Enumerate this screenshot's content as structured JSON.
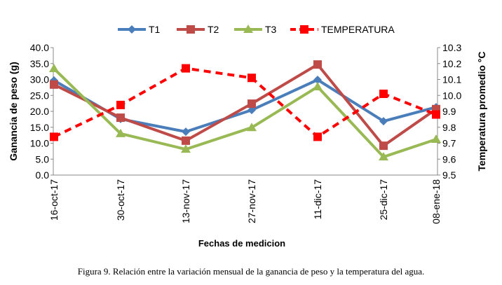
{
  "chart_data": {
    "type": "line",
    "caption": "Figura 9. Relación entre la variación mensual de la ganancia de peso y la temperatura del agua.",
    "xlabel": "Fechas de medicion",
    "ylabel": "Ganancia de peso (g)",
    "y2label": "Temperatura promedio °C",
    "categories": [
      "16-oct-17",
      "30-oct-17",
      "13-nov-17",
      "27-nov-17",
      "11-dic-17",
      "25-dic-17",
      "08-ene-18"
    ],
    "ylim": [
      0,
      40
    ],
    "yticks": [
      "0.0",
      "5.0",
      "10.0",
      "15.0",
      "20.0",
      "25.0",
      "30.0",
      "35.0",
      "40.0"
    ],
    "y2lim": [
      9.5,
      10.3
    ],
    "y2ticks": [
      "9.5",
      "9.6",
      "9.7",
      "9.8",
      "9.9",
      "10.0",
      "10.1",
      "10.2",
      "10.3"
    ],
    "legend_position": "top",
    "series": [
      {
        "name": "T1",
        "axis": "left",
        "color": "#4a7ebb",
        "marker": "diamond",
        "values": [
          29.7,
          17.6,
          13.6,
          20.4,
          29.9,
          16.9,
          21.3
        ]
      },
      {
        "name": "T2",
        "axis": "left",
        "color": "#be4b48",
        "marker": "square",
        "values": [
          28.4,
          18.0,
          10.8,
          22.4,
          34.7,
          9.2,
          20.7
        ]
      },
      {
        "name": "T3",
        "axis": "left",
        "color": "#98b954",
        "marker": "triangle",
        "values": [
          33.4,
          13.0,
          8.1,
          14.9,
          27.7,
          5.7,
          11.2
        ]
      },
      {
        "name": "TEMPERATURA",
        "axis": "right",
        "color": "#ff0000",
        "marker": "square",
        "dashed": true,
        "values": [
          9.74,
          9.94,
          10.17,
          10.11,
          9.74,
          10.01,
          9.88
        ]
      }
    ]
  }
}
